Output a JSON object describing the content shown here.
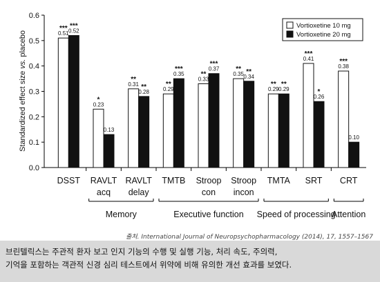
{
  "chart_data": {
    "type": "bar",
    "ylabel_main": "Standardized effect size ",
    "ylabel_italic": "vs.",
    "ylabel_end": " placebo",
    "ylim": [
      0,
      0.6
    ],
    "yticks": [
      "0.0",
      "0.1",
      "0.2",
      "0.3",
      "0.4",
      "0.5",
      "0.6"
    ],
    "categories": [
      {
        "line1": "DSST",
        "line2": ""
      },
      {
        "line1": "RAVLT",
        "line2": "acq"
      },
      {
        "line1": "RAVLT",
        "line2": "delay"
      },
      {
        "line1": "TMTB",
        "line2": ""
      },
      {
        "line1": "Stroop",
        "line2": "con"
      },
      {
        "line1": "Stroop",
        "line2": "incon"
      },
      {
        "line1": "TMTA",
        "line2": ""
      },
      {
        "line1": "SRT",
        "line2": ""
      },
      {
        "line1": "CRT",
        "line2": ""
      }
    ],
    "series": [
      {
        "name": "Vortioxetine 10 mg",
        "color": "#ffffff",
        "values": [
          0.51,
          0.23,
          0.31,
          0.29,
          0.33,
          0.35,
          0.29,
          0.41,
          0.38
        ],
        "labels": [
          "0.51",
          "0.23",
          "0.31",
          "0.29",
          "0.33",
          "0.35",
          "0.29",
          "0.41",
          "0.38"
        ],
        "significance": [
          "***",
          "*",
          "**",
          "**",
          "**",
          "**",
          "**",
          "***",
          "***"
        ]
      },
      {
        "name": "Vortioxetine 20 mg",
        "color": "#111111",
        "values": [
          0.52,
          0.13,
          0.28,
          0.35,
          0.37,
          0.34,
          0.29,
          0.26,
          0.1
        ],
        "labels": [
          "0.52",
          "0.13",
          "0.28",
          "0.35",
          "0.37",
          "0.34",
          "0.29",
          "0.26",
          "0.10"
        ],
        "significance": [
          "***",
          "",
          "**",
          "***",
          "***",
          "**",
          "**",
          "*",
          ""
        ]
      }
    ],
    "groups": [
      {
        "name": "Memory",
        "from": 1,
        "to": 2
      },
      {
        "name": "Executive function",
        "from": 3,
        "to": 5
      },
      {
        "name": "Speed of processing",
        "from": 6,
        "to": 7
      },
      {
        "name": "Attention",
        "from": 8,
        "to": 8
      }
    ],
    "legend_position": "top-right"
  },
  "source": {
    "prefix": "출처. ",
    "text": "International Journal of Neuropsychopharmacology (2014), 17, 1557–1567"
  },
  "caption": {
    "lines": [
      "브린텔릭스는 주관적 환자 보고 인지 기능의 수행 및 실행 기능, 처리 속도, 주의력,",
      "기억을 포함하는 객관적 신경 심리 테스트에서 위약에 비해 유의한 개선 효과를 보였다."
    ]
  }
}
